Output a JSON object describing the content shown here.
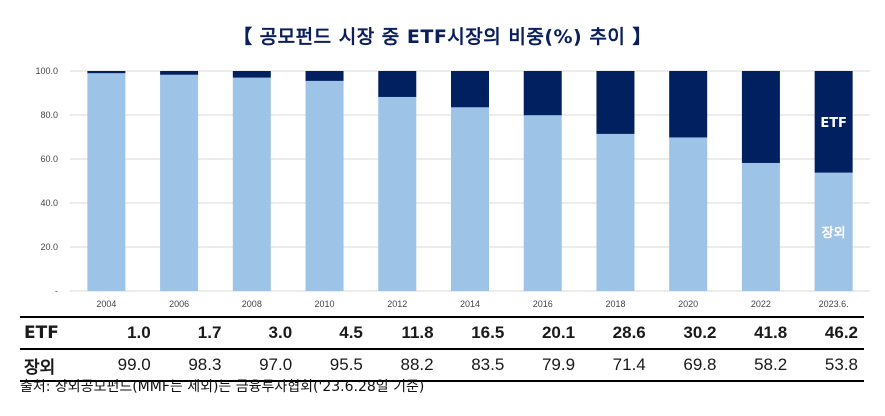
{
  "title": "【 공모펀드 시장 중 ETF시장의 비중(%) 추이 】",
  "chart_data": {
    "type": "bar",
    "stacked": true,
    "categories": [
      "2004",
      "2006",
      "2008",
      "2010",
      "2012",
      "2014",
      "2016",
      "2018",
      "2020",
      "2022",
      "2023.6."
    ],
    "series": [
      {
        "name": "장외",
        "color": "#9dc3e6",
        "values": [
          99.0,
          98.3,
          97.0,
          95.5,
          88.2,
          83.5,
          79.9,
          71.4,
          69.8,
          58.2,
          53.8
        ]
      },
      {
        "name": "ETF",
        "color": "#002060",
        "values": [
          1.0,
          1.7,
          3.0,
          4.5,
          11.8,
          16.5,
          20.1,
          28.6,
          30.2,
          41.8,
          46.2
        ]
      }
    ],
    "ylim": [
      0,
      100
    ],
    "yticks": [
      "-",
      "20.0",
      "40.0",
      "60.0",
      "80.0",
      "100.0"
    ],
    "grid": true,
    "legend": "in-bar labels on last bar"
  },
  "table": {
    "rows": [
      {
        "label": "ETF",
        "values": [
          "1.0",
          "1.7",
          "3.0",
          "4.5",
          "11.8",
          "16.5",
          "20.1",
          "28.6",
          "30.2",
          "41.8",
          "46.2"
        ]
      },
      {
        "label": "장외",
        "values": [
          "99.0",
          "98.3",
          "97.0",
          "95.5",
          "88.2",
          "83.5",
          "79.9",
          "71.4",
          "69.8",
          "58.2",
          "53.8"
        ]
      }
    ]
  },
  "source": "출처: 장외공모펀드(MMF는 제외)는 금융투자협회('23.6.28일 기준)"
}
